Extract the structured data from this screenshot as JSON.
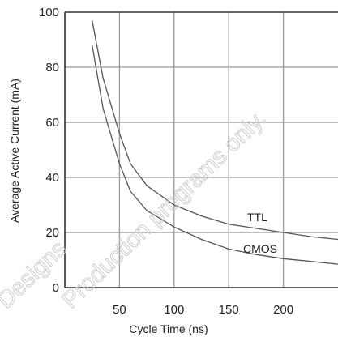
{
  "chart_data": {
    "type": "line",
    "title": "",
    "xlabel": "Cycle Time (ns)",
    "ylabel": "Average Active Current (mA)",
    "xlim": [
      0,
      250
    ],
    "ylim": [
      0,
      100
    ],
    "x_ticks": [
      50,
      100,
      150,
      200
    ],
    "y_ticks": [
      0,
      20,
      40,
      60,
      80,
      100
    ],
    "grid": true,
    "legend": "inline labels",
    "series": [
      {
        "name": "TTL",
        "color": "#555555",
        "points": [
          [
            25,
            97
          ],
          [
            35,
            76
          ],
          [
            50,
            56
          ],
          [
            60,
            45
          ],
          [
            75,
            37
          ],
          [
            100,
            30
          ],
          [
            125,
            26
          ],
          [
            150,
            23
          ],
          [
            175,
            21.5
          ],
          [
            200,
            20
          ],
          [
            225,
            18.5
          ],
          [
            250,
            17.5
          ]
        ]
      },
      {
        "name": "CMOS",
        "color": "#555555",
        "points": [
          [
            25,
            88
          ],
          [
            35,
            65
          ],
          [
            50,
            45
          ],
          [
            60,
            35
          ],
          [
            75,
            28
          ],
          [
            100,
            22
          ],
          [
            125,
            17.5
          ],
          [
            150,
            14
          ],
          [
            175,
            12
          ],
          [
            200,
            10.5
          ],
          [
            225,
            9.5
          ],
          [
            250,
            8.5
          ]
        ]
      }
    ]
  },
  "watermark": {
    "lines": [
      "Designs",
      "Production programs only."
    ]
  }
}
